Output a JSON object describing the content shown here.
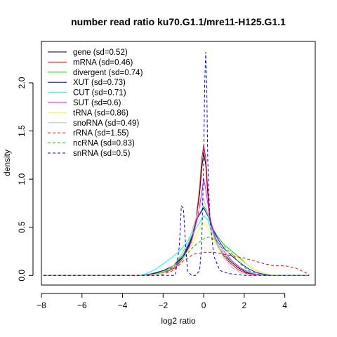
{
  "chart_data": {
    "type": "line",
    "title": "number read ratio ku70.G1.1/mre11-H125.G1.1",
    "xlabel": "log2 ratio",
    "ylabel": "density",
    "xlim": [
      -8.0,
      5.5
    ],
    "ylim": [
      -0.1,
      2.43
    ],
    "xticks": [
      -8,
      -6,
      -4,
      -2,
      0,
      2,
      4
    ],
    "xtick_labels": [
      "−8",
      "−6",
      "−4",
      "−2",
      "0",
      "2",
      "4"
    ],
    "yticks": [
      0.0,
      0.5,
      1.0,
      1.5,
      2.0
    ],
    "ytick_labels": [
      "0.0",
      "0.5",
      "1.0",
      "1.5",
      "2.0"
    ],
    "grid": false,
    "legend_position": "top-left",
    "series": [
      {
        "name": "gene (sd=0.52)",
        "color": "#000000",
        "dash": "solid",
        "x": [
          -7.9,
          -3.0,
          -2.6,
          -2.2,
          -1.8,
          -1.4,
          -1.0,
          -0.7,
          -0.4,
          -0.2,
          -0.1,
          0.0,
          0.1,
          0.2,
          0.3,
          0.5,
          0.7,
          1.0,
          1.3,
          1.7,
          2.1,
          2.5,
          3.0,
          5.2
        ],
        "y": [
          0,
          0,
          0.01,
          0.03,
          0.05,
          0.1,
          0.2,
          0.32,
          0.55,
          0.85,
          1.1,
          1.28,
          1.15,
          0.85,
          0.6,
          0.42,
          0.32,
          0.22,
          0.15,
          0.08,
          0.03,
          0.01,
          0,
          0
        ]
      },
      {
        "name": "mRNA (sd=0.46)",
        "color": "#ff0000",
        "dash": "solid",
        "x": [
          -7.9,
          -3.0,
          -2.6,
          -2.2,
          -1.8,
          -1.4,
          -1.0,
          -0.7,
          -0.4,
          -0.2,
          -0.1,
          0.0,
          0.1,
          0.2,
          0.3,
          0.5,
          0.7,
          1.0,
          1.3,
          1.7,
          2.1,
          2.5,
          3.0,
          5.2
        ],
        "y": [
          0,
          0,
          0.01,
          0.02,
          0.04,
          0.08,
          0.18,
          0.3,
          0.55,
          0.9,
          1.2,
          1.35,
          1.22,
          0.9,
          0.62,
          0.4,
          0.3,
          0.2,
          0.13,
          0.06,
          0.02,
          0.01,
          0,
          0
        ]
      },
      {
        "name": "divergent (sd=0.74)",
        "color": "#00cd00",
        "dash": "solid",
        "x": [
          -7.9,
          -3.0,
          -2.5,
          -2.0,
          -1.5,
          -1.0,
          -0.6,
          -0.3,
          0.0,
          0.2,
          0.4,
          0.7,
          1.0,
          1.4,
          1.8,
          2.2,
          2.6,
          3.0,
          3.4,
          5.2
        ],
        "y": [
          0,
          0,
          0.01,
          0.04,
          0.1,
          0.22,
          0.4,
          0.6,
          0.72,
          0.65,
          0.5,
          0.4,
          0.32,
          0.25,
          0.18,
          0.1,
          0.05,
          0.02,
          0,
          0
        ]
      },
      {
        "name": "XUT (sd=0.73)",
        "color": "#0000ff",
        "dash": "solid",
        "x": [
          -7.9,
          -3.0,
          -2.5,
          -2.0,
          -1.5,
          -1.0,
          -0.6,
          -0.3,
          0.0,
          0.2,
          0.4,
          0.7,
          1.0,
          1.4,
          1.8,
          2.2,
          2.6,
          3.0,
          3.4,
          5.2
        ],
        "y": [
          0,
          0,
          0.02,
          0.05,
          0.1,
          0.2,
          0.38,
          0.6,
          0.7,
          0.62,
          0.5,
          0.38,
          0.28,
          0.2,
          0.13,
          0.07,
          0.03,
          0.01,
          0,
          0
        ]
      },
      {
        "name": "CUT (sd=0.71)",
        "color": "#00ffff",
        "dash": "solid",
        "x": [
          -7.9,
          -3.2,
          -2.8,
          -2.4,
          -2.0,
          -1.6,
          -1.2,
          -0.8,
          -0.5,
          -0.2,
          0.0,
          0.2,
          0.4,
          0.7,
          1.0,
          1.4,
          1.8,
          2.2,
          2.6,
          3.0,
          5.2
        ],
        "y": [
          0,
          0,
          0.02,
          0.06,
          0.12,
          0.18,
          0.25,
          0.35,
          0.45,
          0.55,
          0.62,
          0.58,
          0.45,
          0.32,
          0.22,
          0.15,
          0.08,
          0.04,
          0.01,
          0,
          0
        ]
      },
      {
        "name": "SUT (sd=0.6)",
        "color": "#ff00ff",
        "dash": "solid",
        "x": [
          -7.9,
          -3.0,
          -2.5,
          -2.0,
          -1.5,
          -1.0,
          -0.6,
          -0.3,
          -0.1,
          0.0,
          0.1,
          0.3,
          0.6,
          1.0,
          1.4,
          1.8,
          2.2,
          2.6,
          3.0,
          5.2
        ],
        "y": [
          0,
          0,
          0.01,
          0.03,
          0.08,
          0.18,
          0.35,
          0.6,
          0.85,
          1.0,
          0.9,
          0.6,
          0.38,
          0.25,
          0.15,
          0.08,
          0.03,
          0.01,
          0,
          0
        ]
      },
      {
        "name": "tRNA (sd=0.86)",
        "color": "#ffff00",
        "dash": "solid",
        "x": [
          -7.9,
          -2.8,
          -2.2,
          -1.6,
          -1.0,
          -0.5,
          -0.2,
          0.0,
          0.2,
          0.5,
          0.8,
          1.1,
          1.4,
          1.8,
          2.2,
          2.6,
          3.0,
          3.5,
          5.2
        ],
        "y": [
          0,
          0,
          0.02,
          0.07,
          0.18,
          0.35,
          0.5,
          0.55,
          0.5,
          0.35,
          0.28,
          0.25,
          0.22,
          0.17,
          0.1,
          0.05,
          0.02,
          0,
          0
        ]
      },
      {
        "name": "snoRNA (sd=0.49)",
        "color": "#bebebe",
        "dash": "solid",
        "x": [
          -7.9,
          -2.5,
          -2.0,
          -1.5,
          -1.0,
          -0.6,
          -0.3,
          -0.1,
          0.0,
          0.1,
          0.3,
          0.6,
          1.0,
          1.4,
          1.8,
          2.2,
          5.2
        ],
        "y": [
          0,
          0,
          0.03,
          0.1,
          0.25,
          0.45,
          0.65,
          0.75,
          0.8,
          0.72,
          0.55,
          0.35,
          0.18,
          0.08,
          0.03,
          0,
          0
        ]
      },
      {
        "name": "rRNA (sd=1.55)",
        "color": "#ff0000",
        "dash": "dashed",
        "x": [
          -7.9,
          -2.2,
          -1.5,
          -1.0,
          -0.5,
          0.0,
          0.5,
          1.0,
          1.5,
          2.0,
          2.5,
          3.0,
          3.5,
          4.0,
          4.5,
          5.0,
          5.2
        ],
        "y": [
          0,
          0,
          0.05,
          0.15,
          0.22,
          0.24,
          0.24,
          0.22,
          0.2,
          0.18,
          0.15,
          0.12,
          0.1,
          0.1,
          0.08,
          0.03,
          0.01
        ]
      },
      {
        "name": "ncRNA (sd=0.83)",
        "color": "#00cd00",
        "dash": "dashed",
        "x": [
          -7.9,
          -2.5,
          -2.0,
          -1.5,
          -1.0,
          -0.5,
          0.0,
          0.3,
          0.6,
          1.0,
          1.4,
          1.8,
          2.2,
          2.6,
          3.0,
          5.2
        ],
        "y": [
          0,
          0,
          0.03,
          0.08,
          0.18,
          0.3,
          0.38,
          0.4,
          0.36,
          0.3,
          0.22,
          0.12,
          0.05,
          0.02,
          0,
          0
        ]
      },
      {
        "name": "snRNA (sd=0.5)",
        "color": "#0000ff",
        "dash": "dashed",
        "x": [
          -7.9,
          -1.4,
          -1.2,
          -1.1,
          -1.0,
          -0.9,
          -0.8,
          -0.6,
          -0.4,
          -0.2,
          -0.1,
          0.0,
          0.05,
          0.1,
          0.15,
          0.2,
          0.3,
          0.5,
          0.8,
          1.2,
          1.6,
          2.0,
          5.2
        ],
        "y": [
          0,
          0,
          0.3,
          0.72,
          0.7,
          0.35,
          0.05,
          0,
          0,
          0.05,
          0.3,
          1.2,
          2.0,
          2.32,
          2.0,
          1.2,
          0.6,
          0.2,
          0.05,
          0.02,
          0.01,
          0,
          0
        ]
      }
    ]
  }
}
